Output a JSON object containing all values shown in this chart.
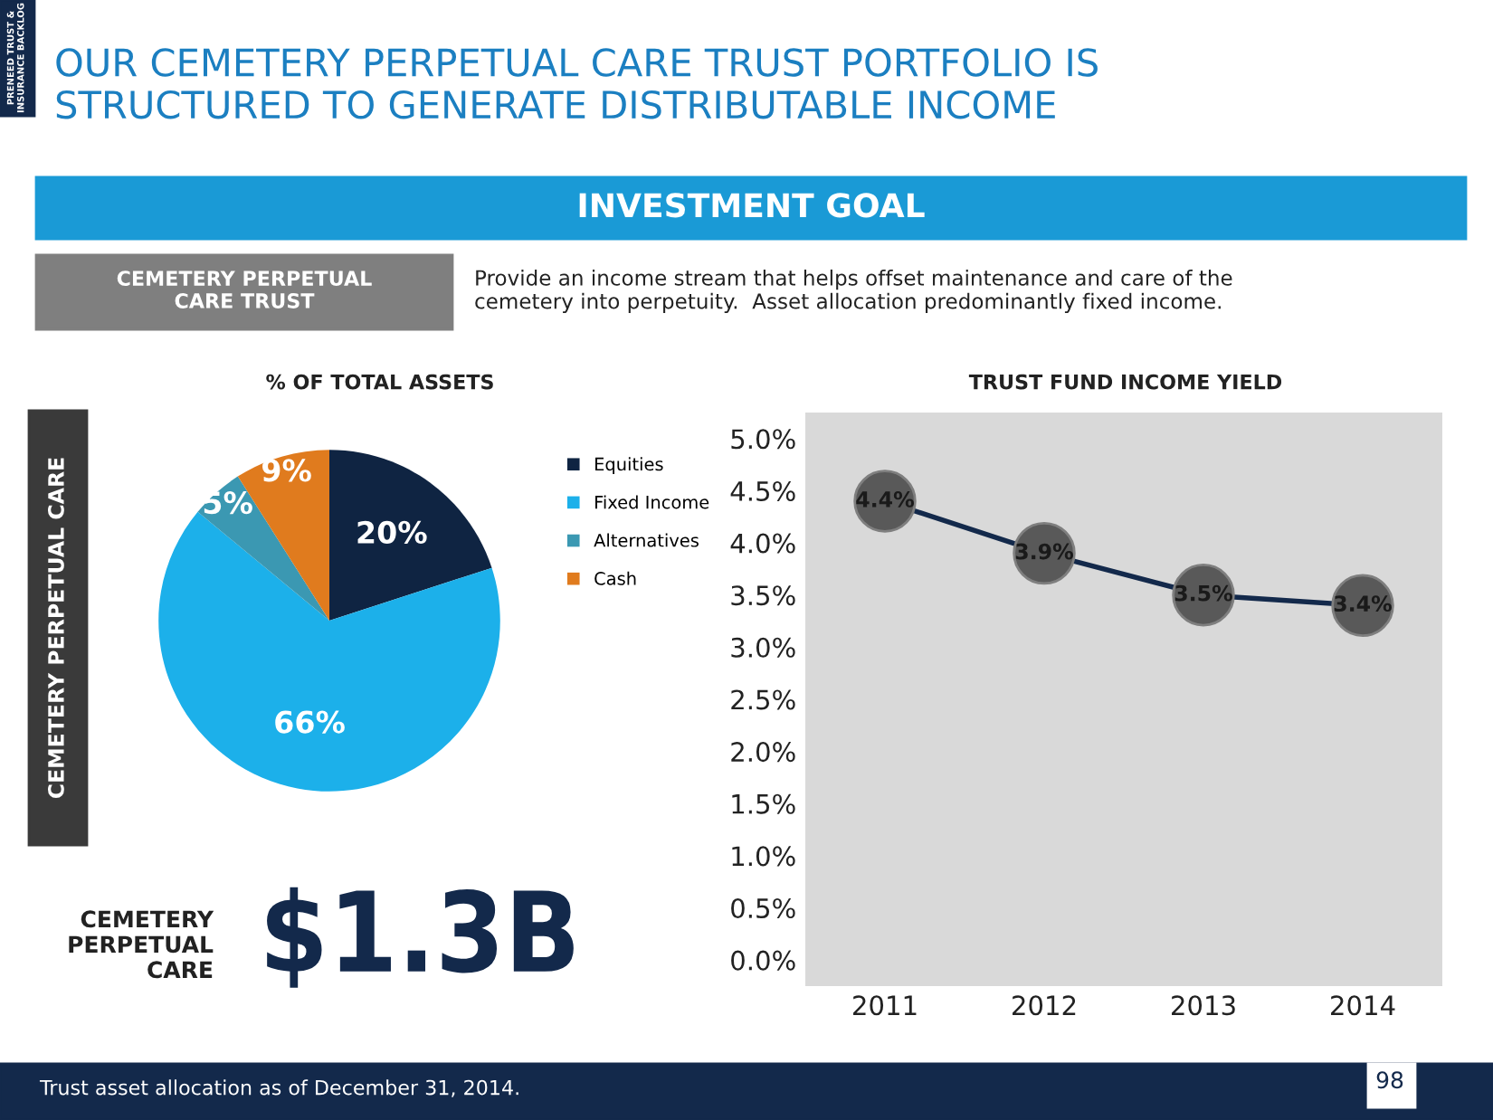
{
  "chart_data": [
    {
      "type": "pie",
      "title": "% OF TOTAL ASSETS",
      "ylabel": "CEMETERY PERPETUAL CARE",
      "categories": [
        "Equities",
        "Fixed Income",
        "Alternatives",
        "Cash"
      ],
      "values": [
        20,
        66,
        5,
        9
      ],
      "colors": [
        "#0f2442",
        "#1cb0ea",
        "#3b98b2",
        "#e07b1e"
      ],
      "value_labels": [
        "20%",
        "66%",
        "5%",
        "9%"
      ],
      "legend": "right",
      "annotations": [
        "OUR CEMETERY PERPETUAL CARE TRUST PORTFOLIO IS STRUCTURED TO GENERATE DISTRIBUTABLE INCOME",
        "INVESTMENT GOAL",
        "CEMETERY PERPETUAL CARE TRUST",
        "Provide an income stream that helps offset maintenance and care of the cemetery into perpetuity.  Asset allocation predominantly fixed income.",
        "CEMETERY PERPETUAL CARE",
        "$1.3B",
        "Trust asset allocation as of December 31, 2014.",
        "98",
        "PRENEED TRUST & INSURANCE BACKLOG"
      ]
    },
    {
      "type": "line",
      "title": "TRUST FUND INCOME YIELD",
      "categories": [
        "2011",
        "2012",
        "2013",
        "2014"
      ],
      "series": [
        {
          "color": "#13294b",
          "values": [
            4.4,
            3.9,
            3.5,
            3.4
          ],
          "value_labels": [
            "4.4%",
            "3.9%",
            "3.5%",
            "3.4%"
          ]
        }
      ],
      "marker": "circle",
      "grid": false,
      "ylim": [
        -0.25,
        5.25
      ],
      "yticks": [
        {
          "value": 0,
          "label": "0.0%"
        },
        {
          "value": 0.5,
          "label": "0.5%"
        },
        {
          "value": 1,
          "label": "1.0%"
        },
        {
          "value": 1.5,
          "label": "1.5%"
        },
        {
          "value": 2,
          "label": "2.0%"
        },
        {
          "value": 2.5,
          "label": "2.5%"
        },
        {
          "value": 3,
          "label": "3.0%"
        },
        {
          "value": 3.5,
          "label": "3.5%"
        },
        {
          "value": 4,
          "label": "4.0%"
        },
        {
          "value": 4.5,
          "label": "4.5%"
        },
        {
          "value": 5,
          "label": "5.0%"
        }
      ]
    }
  ]
}
